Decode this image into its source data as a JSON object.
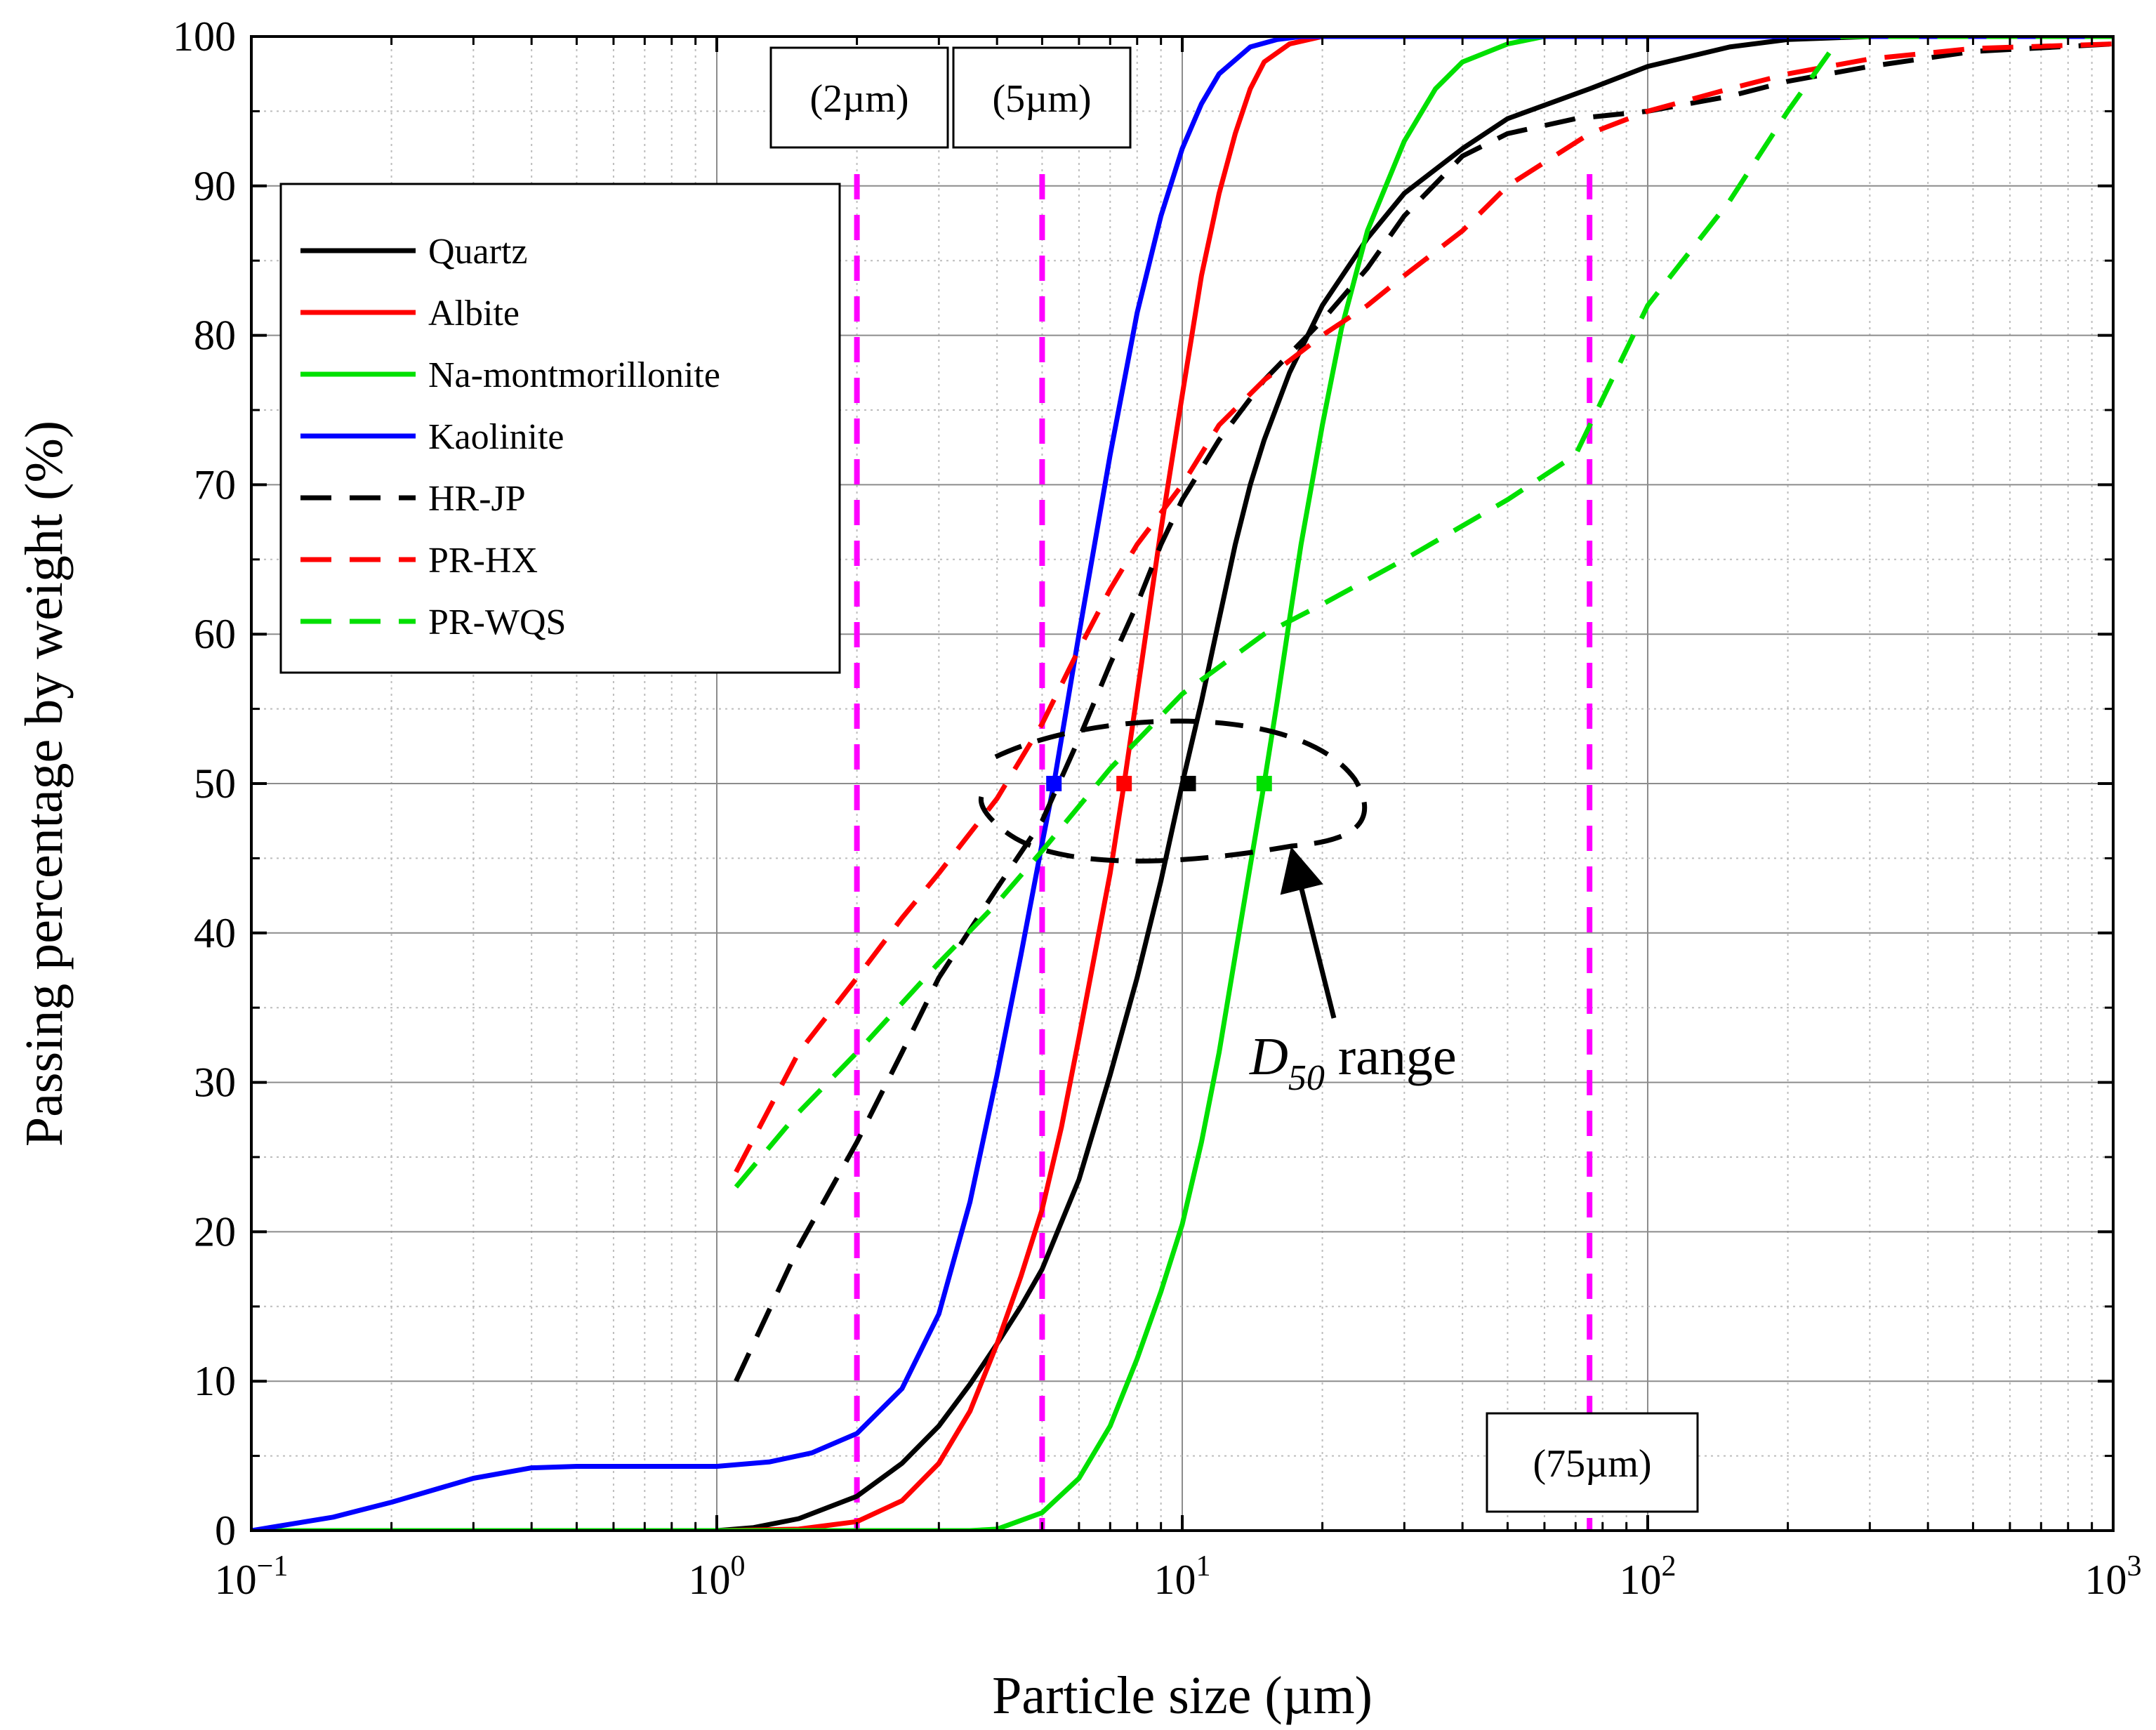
{
  "chart_data": {
    "type": "line",
    "x_scale": "log",
    "xlabel": "Particle size (µm)",
    "ylabel": "Passing percentage by weight (%)",
    "xlim": [
      0.1,
      1000
    ],
    "ylim": [
      0,
      100
    ],
    "x_ticks": [
      {
        "value": 0.1,
        "base": "10",
        "exp": "−1"
      },
      {
        "value": 1,
        "base": "10",
        "exp": "0"
      },
      {
        "value": 10,
        "base": "10",
        "exp": "1"
      },
      {
        "value": 100,
        "base": "10",
        "exp": "2"
      },
      {
        "value": 1000,
        "base": "10",
        "exp": "3"
      }
    ],
    "y_ticks": [
      0,
      10,
      20,
      30,
      40,
      50,
      60,
      70,
      80,
      90,
      100
    ],
    "grid": true,
    "legend_position": "upper-left",
    "series": [
      {
        "name": "Quartz",
        "color": "#000000",
        "dash": false,
        "x": [
          0.1,
          1.0,
          1.2,
          1.5,
          2.0,
          2.5,
          3.0,
          3.5,
          4.0,
          4.5,
          5.0,
          6.0,
          7.0,
          8.0,
          9.0,
          10.0,
          11.0,
          12.0,
          13.0,
          14.0,
          15.0,
          17.0,
          20.0,
          25.0,
          30.0,
          40.0,
          50.0,
          75.0,
          100.0,
          150.0,
          200.0,
          300.0,
          1000.0
        ],
        "y": [
          0,
          0,
          0.2,
          0.8,
          2.3,
          4.5,
          7.0,
          9.8,
          12.5,
          15.0,
          17.5,
          23.5,
          30.5,
          37.0,
          43.5,
          50.0,
          55.5,
          61.0,
          66.0,
          70.0,
          73.0,
          77.5,
          82.0,
          86.5,
          89.5,
          92.5,
          94.5,
          96.5,
          98.0,
          99.3,
          99.8,
          100,
          100
        ]
      },
      {
        "name": "Albite",
        "color": "#ff0000",
        "dash": false,
        "x": [
          0.1,
          1.0,
          1.5,
          2.0,
          2.5,
          3.0,
          3.5,
          4.0,
          4.5,
          5.0,
          5.5,
          6.0,
          7.0,
          7.5,
          8.0,
          9.0,
          10.0,
          11.0,
          12.0,
          13.0,
          14.0,
          15.0,
          17.0,
          20.0,
          25.0,
          1000.0
        ],
        "y": [
          0,
          0,
          0.1,
          0.6,
          2.0,
          4.5,
          8.0,
          12.5,
          17.0,
          21.5,
          27.0,
          33.0,
          44.0,
          50.0,
          56.0,
          67.0,
          76.0,
          84.0,
          89.5,
          93.5,
          96.5,
          98.3,
          99.5,
          100,
          100,
          100
        ]
      },
      {
        "name": "Na-montmorillonite",
        "color": "#00e000",
        "dash": false,
        "x": [
          0.1,
          3.5,
          4.0,
          5.0,
          6.0,
          7.0,
          8.0,
          9.0,
          10.0,
          11.0,
          12.0,
          13.0,
          14.0,
          15.0,
          16.0,
          17.0,
          18.0,
          20.0,
          22.0,
          25.0,
          30.0,
          35.0,
          40.0,
          50.0,
          60.0,
          1000.0
        ],
        "y": [
          0,
          0,
          0.1,
          1.2,
          3.5,
          7.0,
          11.5,
          16.0,
          20.5,
          26.0,
          32.0,
          38.5,
          44.5,
          50.0,
          55.5,
          61.0,
          66.0,
          74.0,
          80.5,
          87.0,
          93.0,
          96.5,
          98.3,
          99.5,
          100,
          100
        ]
      },
      {
        "name": "Kaolinite",
        "color": "#0000ff",
        "dash": false,
        "x": [
          0.1,
          0.15,
          0.2,
          0.3,
          0.4,
          0.5,
          0.7,
          1.0,
          1.3,
          1.6,
          2.0,
          2.5,
          3.0,
          3.5,
          4.0,
          4.5,
          5.0,
          5.3,
          6.0,
          7.0,
          8.0,
          9.0,
          10.0,
          11.0,
          12.0,
          14.0,
          16.0,
          18.0,
          20.0,
          1000.0
        ],
        "y": [
          0,
          0.9,
          1.9,
          3.5,
          4.2,
          4.3,
          4.3,
          4.3,
          4.6,
          5.2,
          6.5,
          9.5,
          14.5,
          22.0,
          30.5,
          38.5,
          46.0,
          50.0,
          60.0,
          72.0,
          81.5,
          88.0,
          92.5,
          95.5,
          97.5,
          99.3,
          99.8,
          100,
          100,
          100
        ]
      },
      {
        "name": "HR-JP",
        "color": "#000000",
        "dash": true,
        "x": [
          1.1,
          1.5,
          2.0,
          2.5,
          3.0,
          4.0,
          5.0,
          6.0,
          7.0,
          8.0,
          9.0,
          10.0,
          12.0,
          15.0,
          20.0,
          25.0,
          30.0,
          40.0,
          50.0,
          70.0,
          100.0,
          150.0,
          200.0,
          300.0,
          500.0,
          1000.0
        ],
        "y": [
          10,
          19,
          26,
          32,
          37,
          43,
          47.5,
          53,
          58,
          62,
          66,
          69,
          73,
          77,
          81,
          84.5,
          88,
          92,
          93.5,
          94.5,
          95,
          96,
          97,
          98,
          99,
          99.5
        ]
      },
      {
        "name": "PR-HX",
        "color": "#ff0000",
        "dash": true,
        "x": [
          1.1,
          1.5,
          2.0,
          2.5,
          3.0,
          4.0,
          5.0,
          6.0,
          7.0,
          8.0,
          10.0,
          12.0,
          15.0,
          20.0,
          25.0,
          30.0,
          40.0,
          50.0,
          75.0,
          100.0,
          150.0,
          200.0,
          300.0,
          500.0,
          1000.0
        ],
        "y": [
          24,
          32,
          37,
          41,
          44,
          49,
          54,
          59,
          63,
          66,
          70,
          74,
          77,
          80,
          82,
          84,
          87,
          90,
          93.5,
          95,
          96.5,
          97.5,
          98.5,
          99.2,
          99.5
        ]
      },
      {
        "name": "PR-WQS",
        "color": "#00e000",
        "dash": true,
        "x": [
          1.1,
          1.5,
          2.0,
          3.0,
          4.0,
          5.0,
          7.0,
          10.0,
          15.0,
          20.0,
          30.0,
          50.0,
          70.0,
          100.0,
          150.0,
          200.0,
          260.0,
          1000.0
        ],
        "y": [
          23,
          28,
          32,
          38,
          42,
          45.5,
          51,
          56,
          60,
          62,
          65,
          69,
          72,
          82,
          89,
          95,
          100,
          100
        ]
      }
    ],
    "d50_markers": [
      {
        "series": "Kaolinite",
        "x": 5.3,
        "y": 50,
        "color": "#0000ff"
      },
      {
        "series": "Albite",
        "x": 7.5,
        "y": 50,
        "color": "#ff0000"
      },
      {
        "series": "Quartz",
        "x": 10.3,
        "y": 50,
        "color": "#000000"
      },
      {
        "series": "Na-montmorillonite",
        "x": 15.0,
        "y": 50,
        "color": "#00e000"
      }
    ],
    "reference_lines": [
      {
        "x": 2,
        "label": "(2µm)",
        "label_position": "top"
      },
      {
        "x": 5,
        "label": "(5µm)",
        "label_position": "top"
      },
      {
        "x": 75,
        "label": "(75µm)",
        "label_position": "bottom"
      }
    ],
    "reference_line_color": "#ff00ff",
    "annotation": {
      "text_main": "D",
      "text_sub": "50",
      "text_rest": " range",
      "target": "D50 points around 50%"
    }
  }
}
